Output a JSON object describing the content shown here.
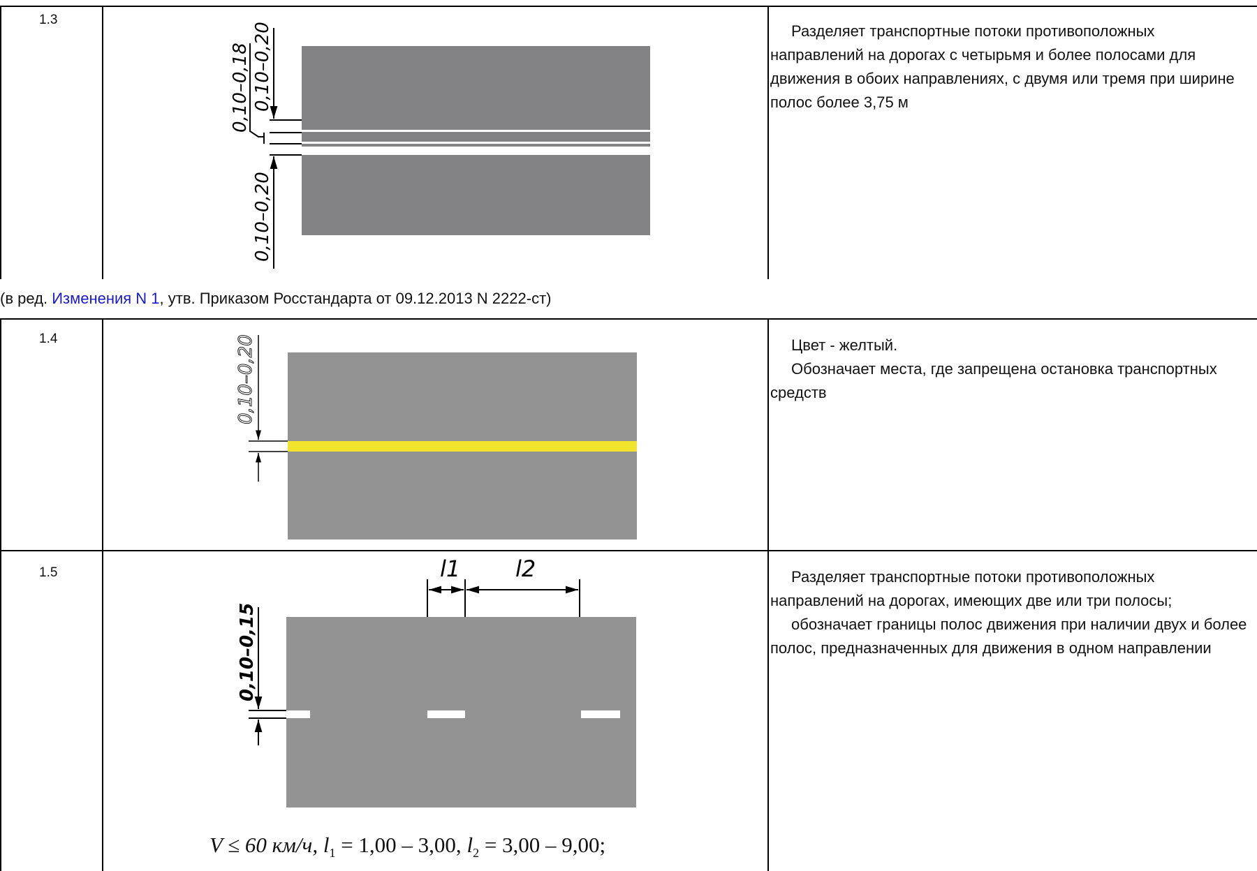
{
  "rows": [
    {
      "code": "1.3",
      "dims": [
        "0,10–0,18",
        "0,10–0,20",
        "0,10–0,20"
      ],
      "description": [
        "Разделяет транспортные потоки противоположных направлений на дорогах с четырьмя и более полосами для движения в обоих направлениях, с двумя или тремя при ширине полос более 3,75 м"
      ]
    },
    {
      "code": "1.4",
      "dims": [
        "0,10–0,20"
      ],
      "marking_color": "#f2e32c",
      "description": [
        "Цвет - желтый.",
        "Обозначает места, где запрещена остановка транспортных средств"
      ]
    },
    {
      "code": "1.5",
      "dims": [
        "0,10–0,15",
        "l1",
        "l2"
      ],
      "formula": {
        "v": "V ≤ 60 км/ч,",
        "l1_sym": "l",
        "l1_sub": "1",
        "l1_val": " = 1,00 – 3,00,",
        "l2_sym": "l",
        "l2_sub": "2",
        "l2_val": " = 3,00 – 9,00;"
      },
      "description": [
        "Разделяет транспортные потоки противоположных направлений на дорогах, имеющих две или три полосы;",
        "обозначает границы полос движения при наличии двух и более полос, предназначенных для движения в одном направлении"
      ]
    }
  ],
  "amendment": {
    "prefix": "(в ред. ",
    "link": "Изменения N 1",
    "suffix": ", утв. Приказом Росстандарта от 09.12.2013 N 2222-ст)"
  },
  "colors": {
    "road": "#939393",
    "road_dark": "#828183",
    "marking": "#ffffff"
  }
}
